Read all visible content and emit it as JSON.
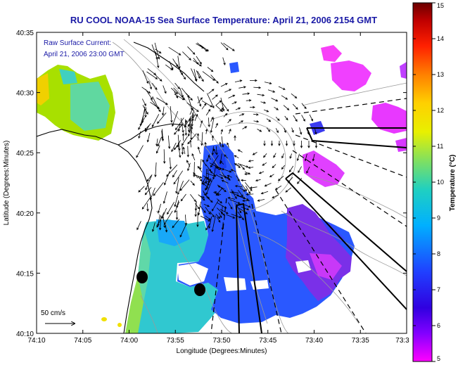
{
  "title": "RU COOL  NOAA-15  Sea Surface Temperature:  April 21, 2006 2154 GMT",
  "current_label_line1": "Raw Surface Current:",
  "current_label_line2": "April 21, 2006 23:00 GMT",
  "scale_label": "50 cm/s",
  "x_axis_label": "Longitude (Degrees:Minutes)",
  "y_axis_label": "Latitude (Degrees:Minutes)",
  "x_ticks": [
    "74:10",
    "74:05",
    "74:00",
    "73:55",
    "73:50",
    "73:45",
    "73:40",
    "73:35",
    "73:3"
  ],
  "y_ticks": [
    "40:35",
    "40:30",
    "40:25",
    "40:20",
    "40:15",
    "40:10"
  ],
  "colorbar": {
    "label": "Temperature (°C)",
    "ticks": [
      "15",
      "14",
      "13",
      "12",
      "11",
      "10",
      "9",
      "8",
      "7",
      "6",
      "5"
    ],
    "range": [
      5,
      15
    ],
    "colors": [
      "#6a0000",
      "#c00000",
      "#ff2000",
      "#ff8000",
      "#ffd000",
      "#e8f000",
      "#80e060",
      "#20d0c0",
      "#00b0ff",
      "#2040ff",
      "#3000e0",
      "#8000ff",
      "#ff00ff"
    ]
  },
  "map": {
    "type": "sea-surface-temperature-with-current-vectors",
    "markers": [
      "station-dot",
      "station-dot"
    ]
  }
}
